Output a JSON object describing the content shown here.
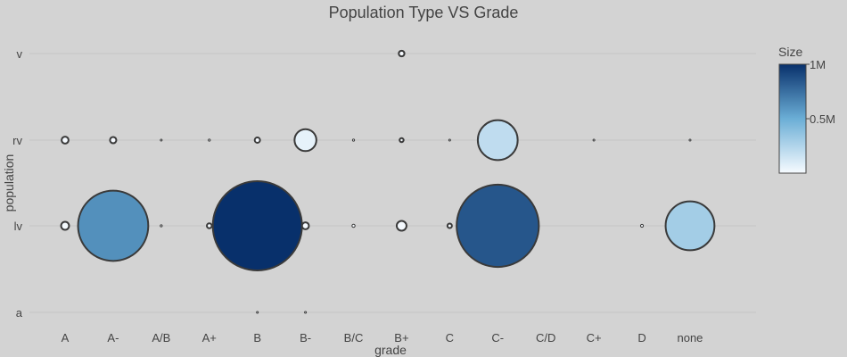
{
  "chart_data": {
    "type": "scatter",
    "title": "Population Type VS Grade",
    "xlabel": "grade",
    "ylabel": "population",
    "categories_x": [
      "A",
      "A-",
      "A/B",
      "A+",
      "B",
      "B-",
      "B/C",
      "B+",
      "C",
      "C-",
      "C/D",
      "C+",
      "D",
      "none"
    ],
    "categories_y": [
      "a",
      "lv",
      "rv",
      "v"
    ],
    "colorbar": {
      "title": "Size",
      "range": [
        0,
        1000000
      ],
      "ticks": [
        {
          "value": 1000000,
          "label": "1M"
        },
        {
          "value": 500000,
          "label": "0.5M"
        }
      ],
      "colors": [
        "#f7fbff",
        "#6baed6",
        "#08306b"
      ]
    },
    "points": [
      {
        "x": "B+",
        "y": "v",
        "size": 4000
      },
      {
        "x": "A",
        "y": "rv",
        "size": 6000
      },
      {
        "x": "A-",
        "y": "rv",
        "size": 5000
      },
      {
        "x": "A/B",
        "y": "rv",
        "size": 300
      },
      {
        "x": "A+",
        "y": "rv",
        "size": 500
      },
      {
        "x": "B",
        "y": "rv",
        "size": 3500
      },
      {
        "x": "B-",
        "y": "rv",
        "size": 60000
      },
      {
        "x": "B/C",
        "y": "rv",
        "size": 500
      },
      {
        "x": "B+",
        "y": "rv",
        "size": 2000
      },
      {
        "x": "C",
        "y": "rv",
        "size": 300
      },
      {
        "x": "C-",
        "y": "rv",
        "size": 200000
      },
      {
        "x": "C+",
        "y": "rv",
        "size": 400
      },
      {
        "x": "none",
        "y": "rv",
        "size": 400
      },
      {
        "x": "A",
        "y": "lv",
        "size": 8000
      },
      {
        "x": "A-",
        "y": "lv",
        "size": 620000
      },
      {
        "x": "A/B",
        "y": "lv",
        "size": 500
      },
      {
        "x": "A+",
        "y": "lv",
        "size": 3000
      },
      {
        "x": "B",
        "y": "lv",
        "size": 1000000
      },
      {
        "x": "B-",
        "y": "lv",
        "size": 6000
      },
      {
        "x": "B/C",
        "y": "lv",
        "size": 1200
      },
      {
        "x": "B+",
        "y": "lv",
        "size": 12000
      },
      {
        "x": "C",
        "y": "lv",
        "size": 2500
      },
      {
        "x": "C-",
        "y": "lv",
        "size": 850000
      },
      {
        "x": "D",
        "y": "lv",
        "size": 1000
      },
      {
        "x": "none",
        "y": "lv",
        "size": 300000
      },
      {
        "x": "B",
        "y": "a",
        "size": 100
      },
      {
        "x": "B-",
        "y": "a",
        "size": 100
      }
    ]
  }
}
